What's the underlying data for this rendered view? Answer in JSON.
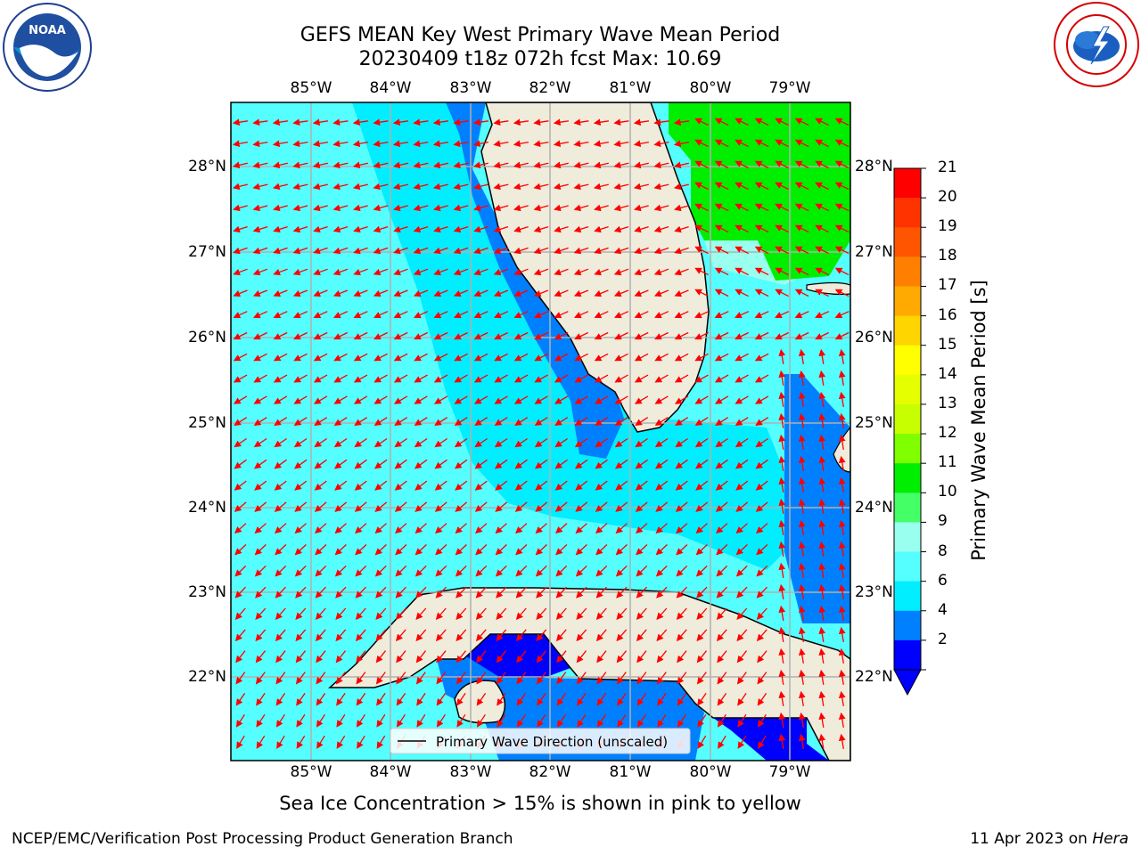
{
  "title": {
    "line1": "GEFS MEAN Key West Primary Wave Mean Period",
    "line2": "20230409 t18z 072h fcst   Max: 10.69"
  },
  "logos": {
    "left": "noaa-logo",
    "right": "national-weather-service-logo"
  },
  "map": {
    "lon_labels": [
      "85°W",
      "84°W",
      "83°W",
      "82°W",
      "81°W",
      "80°W",
      "79°W"
    ],
    "lat_labels": [
      "28°N",
      "27°N",
      "26°N",
      "25°N",
      "24°N",
      "23°N",
      "22°N"
    ],
    "legend_label": "Primary Wave Direction (unscaled)",
    "arrow_color": "#ff0000",
    "land_color": "#efecdc",
    "grid_color": "#b0b0b0"
  },
  "colorbar": {
    "title": "Primary Wave Mean Period [s]",
    "ticks": [
      "21",
      "20",
      "19",
      "18",
      "17",
      "16",
      "15",
      "14",
      "13",
      "12",
      "11",
      "10",
      "9",
      "8",
      "6",
      "4",
      "2"
    ],
    "colors": [
      "#ff0000",
      "#ff3300",
      "#ff5500",
      "#ff8000",
      "#ffaa00",
      "#ffd500",
      "#ffff00",
      "#e6ff00",
      "#c8ff00",
      "#7fff00",
      "#00ee00",
      "#44ff66",
      "#99ffee",
      "#55ffff",
      "#00eeff",
      "#0080ff",
      "#0000ff"
    ]
  },
  "note": "Sea Ice Concentration > 15% is shown in pink to yellow",
  "footer": {
    "left": "NCEP/EMC/Verification Post Processing Product Generation Branch",
    "right_date": "11 Apr 2023 on ",
    "right_host": "Hera"
  }
}
